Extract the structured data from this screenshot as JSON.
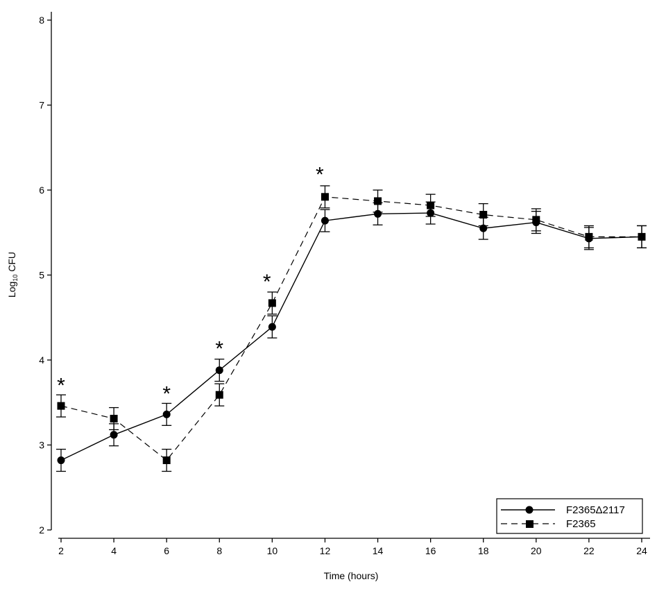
{
  "chart_data": {
    "type": "line",
    "xlabel": "Time (hours)",
    "ylabel_main": "Log",
    "ylabel_sub": "10",
    "ylabel_tail": " CFU",
    "xlim": [
      2,
      24
    ],
    "ylim": [
      2,
      8
    ],
    "x_ticks": [
      2,
      4,
      6,
      8,
      10,
      12,
      14,
      16,
      18,
      20,
      22,
      24
    ],
    "y_ticks": [
      2,
      3,
      4,
      5,
      6,
      7,
      8
    ],
    "grid": false,
    "legend_position": "bottom-right",
    "x": [
      2,
      4,
      6,
      8,
      10,
      12,
      14,
      16,
      18,
      20,
      22,
      24
    ],
    "series": [
      {
        "name": "F2365Δ2117",
        "marker": "circle",
        "line": "solid",
        "values": [
          2.82,
          3.12,
          3.36,
          3.88,
          4.39,
          5.64,
          5.72,
          5.73,
          5.55,
          5.62,
          5.43,
          5.45
        ],
        "errors": [
          0.13,
          0.13,
          0.13,
          0.13,
          0.13,
          0.13,
          0.13,
          0.13,
          0.13,
          0.13,
          0.13,
          0.13
        ]
      },
      {
        "name": "F2365",
        "marker": "square",
        "line": "dashed",
        "values": [
          3.46,
          3.31,
          2.82,
          3.59,
          4.67,
          5.92,
          5.87,
          5.82,
          5.71,
          5.65,
          5.45,
          5.45
        ],
        "errors": [
          0.13,
          0.13,
          0.13,
          0.13,
          0.13,
          0.13,
          0.13,
          0.13,
          0.13,
          0.13,
          0.13,
          0.13
        ]
      }
    ],
    "annotations": [
      {
        "text": "*",
        "x": 2,
        "y": 3.72
      },
      {
        "text": "*",
        "x": 6,
        "y": 3.62
      },
      {
        "text": "*",
        "x": 8,
        "y": 4.15
      },
      {
        "text": "*",
        "x": 9.8,
        "y": 4.94
      },
      {
        "text": "*",
        "x": 11.8,
        "y": 6.2
      }
    ],
    "colors": {
      "axis": "#000000",
      "line": "#000000",
      "marker": "#000000"
    }
  }
}
